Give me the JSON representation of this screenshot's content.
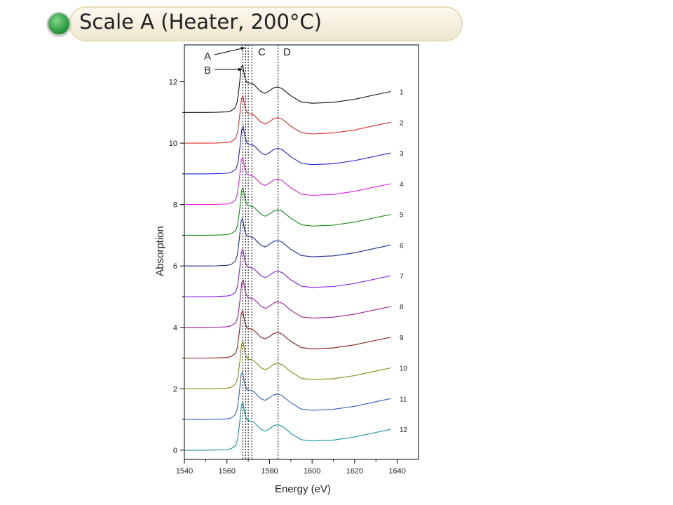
{
  "title": "Scale A (Heater, 200°C)",
  "chart_data": {
    "type": "line",
    "xlabel": "Energy (eV)",
    "ylabel": "Absorption",
    "xlim": [
      1540,
      1650
    ],
    "ylim": [
      -0.3,
      13.2
    ],
    "xticks": [
      "1540",
      "1560",
      "1580",
      "1600",
      "1620",
      "1640"
    ],
    "yticks": [
      "0",
      "2",
      "4",
      "6",
      "8",
      "10",
      "12"
    ],
    "grid": false,
    "peak_lines": [
      {
        "label": "A",
        "x": 1568.8
      },
      {
        "label": "B",
        "x": 1567.5
      },
      {
        "label": "C",
        "x": 1571.7
      },
      {
        "label": "D",
        "x": 1584.0
      },
      {
        "label": "",
        "x": 1570.0
      }
    ],
    "curve_shape": {
      "x": [
        1540,
        1550,
        1555,
        1560,
        1562,
        1564,
        1565,
        1566,
        1566.8,
        1567.5,
        1568.5,
        1569.5,
        1571,
        1572.5,
        1574,
        1576,
        1578,
        1580,
        1582,
        1584,
        1586,
        1590,
        1595,
        1600,
        1610,
        1620,
        1630,
        1637
      ],
      "y": [
        0,
        0,
        0.005,
        0.02,
        0.05,
        0.15,
        0.35,
        0.9,
        1.45,
        1.55,
        1.15,
        0.98,
        0.95,
        0.92,
        0.82,
        0.68,
        0.62,
        0.7,
        0.8,
        0.83,
        0.78,
        0.55,
        0.34,
        0.3,
        0.33,
        0.43,
        0.58,
        0.68
      ]
    },
    "series": [
      {
        "name": "1",
        "offset": 11.0,
        "color": "#111111"
      },
      {
        "name": "2",
        "offset": 10.0,
        "color": "#e02a2a"
      },
      {
        "name": "3",
        "offset": 9.0,
        "color": "#2222cc"
      },
      {
        "name": "4",
        "offset": 8.0,
        "color": "#e020e0"
      },
      {
        "name": "5",
        "offset": 7.0,
        "color": "#138a13"
      },
      {
        "name": "6",
        "offset": 6.0,
        "color": "#1c2a94"
      },
      {
        "name": "7",
        "offset": 5.0,
        "color": "#8a1ee0"
      },
      {
        "name": "8",
        "offset": 4.0,
        "color": "#9a1e9a"
      },
      {
        "name": "9",
        "offset": 3.0,
        "color": "#8a1a1a"
      },
      {
        "name": "10",
        "offset": 2.0,
        "color": "#8a8a10"
      },
      {
        "name": "11",
        "offset": 1.0,
        "color": "#3060c0"
      },
      {
        "name": "12",
        "offset": 0.0,
        "color": "#15909a"
      }
    ]
  }
}
